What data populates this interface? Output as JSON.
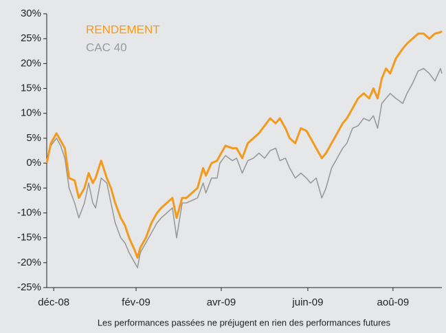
{
  "chart_data": {
    "type": "line",
    "footnote": "Les performances passées ne préjugent en rien des performances futures",
    "x": [
      0,
      3,
      7,
      10,
      13,
      16,
      20,
      23,
      27,
      30,
      33,
      35,
      39,
      43,
      46,
      49,
      53,
      56,
      59,
      63,
      65,
      67,
      71,
      75,
      79,
      82,
      86,
      90,
      93,
      97,
      100,
      104,
      108,
      112,
      114,
      118,
      122,
      124,
      128,
      133,
      136,
      140,
      144,
      148,
      152,
      156,
      160,
      164,
      167,
      171,
      174,
      178,
      182,
      186,
      189,
      193,
      197,
      200,
      204,
      208,
      212,
      215,
      219,
      223,
      227,
      231,
      234,
      237,
      240,
      243,
      246,
      250,
      255,
      258,
      262,
      266,
      270,
      274,
      278,
      282,
      283
    ],
    "series": [
      {
        "name": "RENDEMENT",
        "color": "#f39a1e",
        "values": [
          0,
          4,
          6,
          4.5,
          3,
          -3,
          -3.5,
          -7,
          -5,
          -2,
          -4,
          -3,
          0.5,
          -3,
          -5,
          -8,
          -11,
          -12.5,
          -15,
          -17.5,
          -19,
          -17,
          -15,
          -12,
          -10,
          -9,
          -8,
          -7,
          -11,
          -7,
          -7,
          -6,
          -5,
          -1,
          -2.5,
          0,
          0.5,
          1.5,
          3.5,
          3,
          3,
          1,
          4,
          5,
          6,
          7.5,
          9,
          8,
          9,
          7,
          5,
          4,
          7,
          6.5,
          5,
          3,
          1,
          2,
          4,
          6,
          8,
          9,
          11,
          13,
          14,
          13,
          15,
          13,
          17,
          19,
          18,
          21,
          23,
          24,
          25,
          26,
          26,
          25,
          26,
          26.3,
          26.5
        ]
      },
      {
        "name": "CAC 40",
        "color": "#9a9a9a",
        "values": [
          0,
          3.5,
          5,
          3.5,
          1,
          -5,
          -8,
          -11,
          -8,
          -4,
          -8,
          -9,
          -3,
          -4,
          -8,
          -12,
          -15,
          -16,
          -18,
          -20,
          -21,
          -18,
          -16,
          -14,
          -12,
          -11,
          -10,
          -9,
          -15,
          -8,
          -8,
          -7.5,
          -7,
          -4,
          -6,
          -3,
          -3,
          0,
          1.5,
          0.5,
          1,
          -2,
          0.5,
          1,
          2,
          1,
          2.5,
          3,
          0.5,
          1,
          -1,
          -3,
          -2,
          -3,
          -4,
          -3,
          -7,
          -5,
          -1,
          1,
          3,
          4,
          7,
          7.5,
          9,
          8.5,
          9.5,
          7,
          12,
          13,
          14,
          13,
          12,
          14,
          16,
          18.5,
          19,
          18,
          16.5,
          19,
          18
        ]
      }
    ],
    "xlim": [
      0,
      283
    ],
    "xticks": [
      {
        "value": 5,
        "label": "déc-08"
      },
      {
        "value": 64,
        "label": "fév-09"
      },
      {
        "value": 125,
        "label": "avr-09"
      },
      {
        "value": 187,
        "label": "juin-09"
      },
      {
        "value": 248,
        "label": "aoû-09"
      }
    ],
    "ylim": [
      -25,
      30
    ],
    "yticks": [
      {
        "value": 30,
        "label": "30%"
      },
      {
        "value": 25,
        "label": "25%"
      },
      {
        "value": 20,
        "label": "20%"
      },
      {
        "value": 15,
        "label": "15%"
      },
      {
        "value": 10,
        "label": "10%"
      },
      {
        "value": 5,
        "label": "5%"
      },
      {
        "value": 0,
        "label": "0%"
      },
      {
        "value": -5,
        "label": "-5%"
      },
      {
        "value": -10,
        "label": "-10%"
      },
      {
        "value": -15,
        "label": "-15%"
      },
      {
        "value": -20,
        "label": "-20%"
      },
      {
        "value": -25,
        "label": "-25%"
      }
    ]
  }
}
